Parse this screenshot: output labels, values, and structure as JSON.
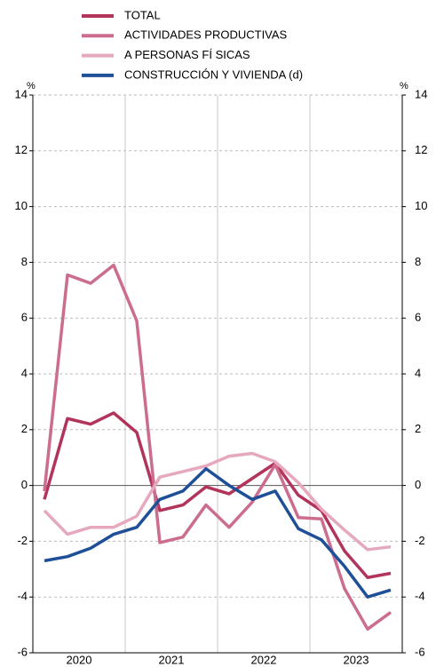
{
  "chart_data": {
    "type": "line",
    "categories": [
      null,
      null,
      null,
      null,
      null,
      null,
      null,
      null,
      null,
      null,
      null,
      null,
      null,
      null,
      null,
      null
    ],
    "x_labels": [
      "2020",
      "2021",
      "2022",
      "2023"
    ],
    "y_unit": "%",
    "y2_unit": "%",
    "ylim": [
      -6,
      14
    ],
    "yticks": [
      -6,
      -4,
      -2,
      0,
      2,
      4,
      6,
      8,
      10,
      12,
      14
    ],
    "y2lim": [
      -6,
      14
    ],
    "y2ticks": [
      -6,
      -4,
      -2,
      0,
      2,
      4,
      6,
      8,
      10,
      12,
      14
    ],
    "grid": true,
    "series": [
      {
        "name": "TOTAL",
        "color": "#b3345b",
        "values": [
          -0.5,
          2.4,
          2.2,
          2.6,
          1.9,
          -0.9,
          -0.7,
          -0.05,
          -0.3,
          0.25,
          0.8,
          -0.35,
          -0.9,
          -2.35,
          -3.3,
          -3.15
        ]
      },
      {
        "name": "ACTIVIDADES PRODUCTIVAS",
        "color": "#cc6d90",
        "values": [
          -0.2,
          7.55,
          7.25,
          7.9,
          5.9,
          -2.05,
          -1.85,
          -0.7,
          -1.5,
          -0.6,
          0.75,
          -1.15,
          -1.2,
          -3.7,
          -5.15,
          -4.55
        ]
      },
      {
        "name": "A PERSONAS FÍ SICAS",
        "color": "#e6a8bd",
        "values": [
          -0.9,
          -1.75,
          -1.5,
          -1.5,
          -1.1,
          0.3,
          0.5,
          0.7,
          1.05,
          1.15,
          0.85,
          0.1,
          -0.85,
          -1.6,
          -2.3,
          -2.2
        ]
      },
      {
        "name": "CONSTRUCCIÓN Y VIVIENDA (d)",
        "color": "#1f4f97",
        "axis": "y2",
        "values": [
          -2.7,
          -2.55,
          -2.25,
          -1.75,
          -1.5,
          -0.5,
          -0.2,
          0.6,
          0.0,
          -0.5,
          -0.2,
          -1.55,
          -1.95,
          -2.9,
          -4.0,
          -3.75
        ]
      }
    ]
  }
}
